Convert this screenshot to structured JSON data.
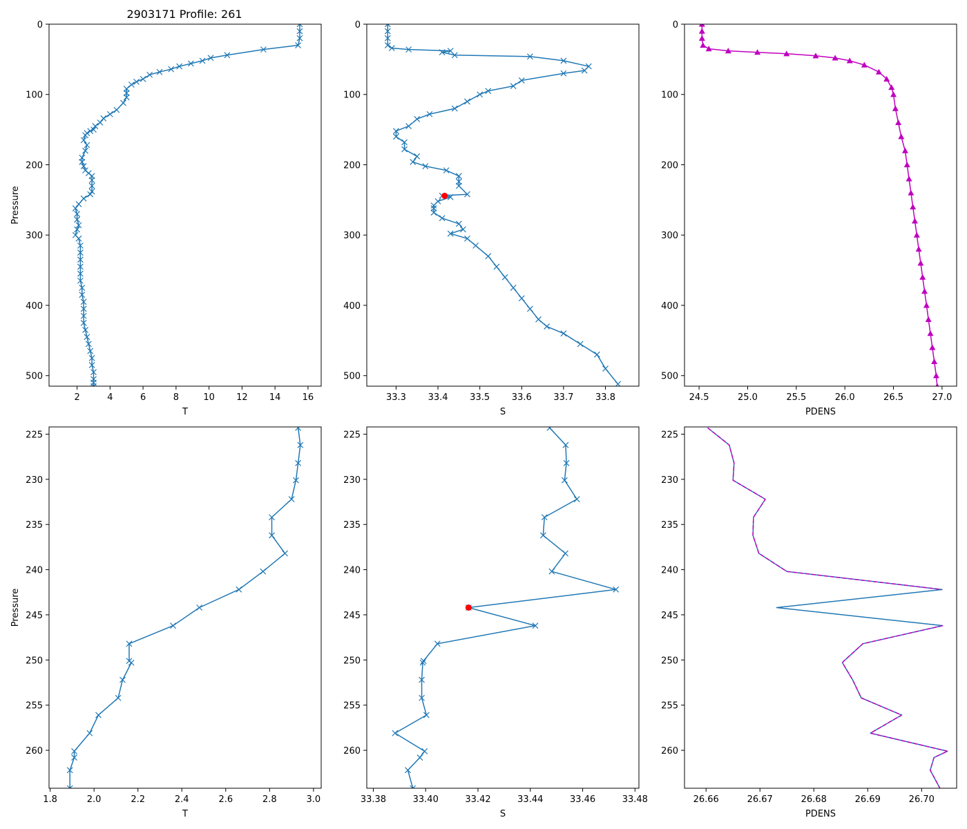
{
  "figure": {
    "title": "2903171 Profile: 261"
  },
  "colors": {
    "profile": "#1f77b4",
    "density": "#bf00bf",
    "highlight": "#ff0000"
  },
  "chart_data": [
    {
      "id": "top-temperature",
      "type": "line",
      "xlabel": "T",
      "ylabel": "Pressure",
      "xlim": [
        0.3,
        16.8
      ],
      "ylim": [
        515,
        0
      ],
      "invert_y": true,
      "xticks": [
        2,
        4,
        6,
        8,
        10,
        12,
        14,
        16
      ],
      "yticks": [
        0,
        100,
        200,
        300,
        400,
        500
      ],
      "marker": "x",
      "line_color": "#1f77b4",
      "series": [
        {
          "name": "T",
          "x": [
            15.5,
            15.5,
            15.5,
            15.4,
            13.3,
            11.1,
            10.1,
            9.6,
            8.9,
            8.2,
            7.7,
            7.0,
            6.4,
            6.0,
            5.6,
            5.3,
            5.0,
            5.0,
            5.0,
            4.8,
            4.4,
            4.0,
            3.6,
            3.4,
            3.1,
            3.0,
            2.8,
            2.6,
            2.5,
            2.4,
            2.6,
            2.5,
            2.3,
            2.3,
            2.4,
            2.5,
            2.7,
            2.9,
            2.9,
            2.9,
            2.9,
            2.8,
            2.4,
            2.1,
            1.9,
            2.0,
            2.0,
            2.1,
            2.0,
            1.9,
            2.1,
            2.2,
            2.2,
            2.2,
            2.2,
            2.2,
            2.2,
            2.3,
            2.3,
            2.4,
            2.4,
            2.4,
            2.4,
            2.5,
            2.6,
            2.7,
            2.8,
            2.9,
            2.9,
            3.0,
            3.0,
            3.0,
            3.0
          ],
          "y": [
            0,
            10,
            20,
            30,
            36,
            44,
            48,
            52,
            56,
            60,
            64,
            68,
            72,
            78,
            82,
            86,
            92,
            98,
            104,
            112,
            122,
            128,
            134,
            140,
            145,
            150,
            152,
            155,
            158,
            165,
            172,
            180,
            190,
            196,
            202,
            208,
            212,
            216,
            222,
            230,
            238,
            242,
            248,
            256,
            262,
            270,
            278,
            286,
            292,
            300,
            305,
            315,
            325,
            335,
            345,
            355,
            365,
            375,
            385,
            395,
            405,
            415,
            425,
            435,
            445,
            455,
            465,
            475,
            485,
            495,
            505,
            510,
            515
          ]
        }
      ],
      "highlight": null
    },
    {
      "id": "top-salinity",
      "type": "line",
      "xlabel": "S",
      "ylabel": "",
      "xlim": [
        33.23,
        33.88
      ],
      "ylim": [
        515,
        0
      ],
      "invert_y": true,
      "xticks": [
        33.3,
        33.4,
        33.5,
        33.6,
        33.7,
        33.8
      ],
      "yticks": [
        0,
        100,
        200,
        300,
        400,
        500
      ],
      "marker": "x",
      "line_color": "#1f77b4",
      "series": [
        {
          "name": "S",
          "x": [
            33.28,
            33.28,
            33.28,
            33.28,
            33.29,
            33.33,
            33.43,
            33.41,
            33.44,
            33.62,
            33.7,
            33.76,
            33.75,
            33.7,
            33.6,
            33.58,
            33.52,
            33.5,
            33.47,
            33.44,
            33.38,
            33.35,
            33.33,
            33.3,
            33.3,
            33.32,
            33.32,
            33.35,
            33.34,
            33.37,
            33.42,
            33.45,
            33.45,
            33.45,
            33.47,
            33.41,
            33.43,
            33.4,
            33.39,
            33.39,
            33.39,
            33.41,
            33.45,
            33.46,
            33.43,
            33.47,
            33.49,
            33.52,
            33.54,
            33.56,
            33.58,
            33.6,
            33.62,
            33.64,
            33.66,
            33.7,
            33.74,
            33.78,
            33.8,
            33.83
          ],
          "y": [
            0,
            10,
            20,
            30,
            34,
            36,
            38,
            40,
            44,
            46,
            52,
            60,
            66,
            70,
            80,
            88,
            95,
            100,
            110,
            120,
            128,
            135,
            145,
            152,
            160,
            168,
            178,
            188,
            196,
            202,
            208,
            216,
            224,
            230,
            242,
            244,
            246,
            252,
            258,
            262,
            268,
            276,
            284,
            292,
            298,
            305,
            315,
            330,
            345,
            360,
            375,
            390,
            405,
            420,
            430,
            440,
            455,
            470,
            490,
            512
          ]
        }
      ],
      "highlight": {
        "x": [
          33.416
        ],
        "y": [
          244.2
        ]
      }
    },
    {
      "id": "top-density",
      "type": "line",
      "xlabel": "PDENS",
      "ylabel": "",
      "xlim": [
        24.35,
        27.15
      ],
      "ylim": [
        515,
        0
      ],
      "invert_y": true,
      "xticks": [
        24.5,
        25.0,
        25.5,
        26.0,
        26.5,
        27.0
      ],
      "yticks": [
        0,
        100,
        200,
        300,
        400,
        500
      ],
      "marker": "^",
      "line_color": "#bf00bf",
      "series": [
        {
          "name": "PDENS",
          "x": [
            24.53,
            24.53,
            24.53,
            24.54,
            24.6,
            24.8,
            25.1,
            25.4,
            25.7,
            25.9,
            26.05,
            26.2,
            26.35,
            26.43,
            26.48,
            26.5,
            26.52,
            26.55,
            26.58,
            26.62,
            26.64,
            26.66,
            26.68,
            26.7,
            26.72,
            26.74,
            26.76,
            26.78,
            26.8,
            26.82,
            26.84,
            26.86,
            26.88,
            26.9,
            26.92,
            26.94,
            26.95
          ],
          "y": [
            0,
            10,
            20,
            30,
            35,
            38,
            40,
            42,
            45,
            48,
            52,
            58,
            68,
            78,
            90,
            100,
            120,
            140,
            160,
            180,
            200,
            220,
            240,
            260,
            280,
            300,
            320,
            340,
            360,
            380,
            400,
            420,
            440,
            460,
            480,
            500,
            515
          ]
        }
      ],
      "highlight": null
    },
    {
      "id": "bottom-temperature",
      "type": "line",
      "xlabel": "T",
      "ylabel": "Pressure",
      "xlim": [
        1.795,
        3.035
      ],
      "ylim": [
        264.2,
        224.2
      ],
      "invert_y": true,
      "xticks": [
        1.8,
        2.0,
        2.2,
        2.4,
        2.6,
        2.8,
        3.0
      ],
      "yticks": [
        225,
        230,
        235,
        240,
        245,
        250,
        255,
        260
      ],
      "marker": "x",
      "line_color": "#1f77b4",
      "series": [
        {
          "name": "T",
          "x": [
            2.93,
            2.94,
            2.93,
            2.92,
            2.9,
            2.81,
            2.81,
            2.87,
            2.77,
            2.66,
            2.48,
            2.36,
            2.16,
            2.16,
            2.17,
            2.13,
            2.11,
            2.02,
            1.98,
            1.91,
            1.91,
            1.89,
            1.89
          ],
          "y": [
            224.3,
            226.2,
            228.2,
            230.1,
            232.2,
            234.2,
            236.2,
            238.2,
            240.2,
            242.2,
            244.2,
            246.2,
            248.2,
            250.1,
            250.3,
            252.2,
            254.2,
            256.1,
            258.1,
            260.1,
            260.8,
            262.2,
            264.2
          ]
        }
      ],
      "highlight": null
    },
    {
      "id": "bottom-salinity",
      "type": "line",
      "xlabel": "S",
      "ylabel": "",
      "xlim": [
        33.3775,
        33.4815
      ],
      "ylim": [
        264.2,
        224.2
      ],
      "invert_y": true,
      "xticks": [
        33.38,
        33.4,
        33.42,
        33.44,
        33.46,
        33.48
      ],
      "yticks": [
        225,
        230,
        235,
        240,
        245,
        250,
        255,
        260
      ],
      "marker": "x",
      "line_color": "#1f77b4",
      "series": [
        {
          "name": "S",
          "x": [
            33.4474,
            33.4535,
            33.4538,
            33.4531,
            33.4578,
            33.4454,
            33.4449,
            33.4534,
            33.4482,
            33.4727,
            33.4164,
            33.4419,
            33.4045,
            33.3992,
            33.3989,
            33.3985,
            33.3985,
            33.4003,
            33.3883,
            33.3996,
            33.3978,
            33.3932,
            33.3951
          ],
          "y": [
            224.3,
            226.2,
            228.2,
            230.1,
            232.2,
            234.2,
            236.2,
            238.2,
            240.2,
            242.2,
            244.2,
            246.2,
            248.2,
            250.1,
            250.3,
            252.2,
            254.2,
            256.1,
            258.1,
            260.1,
            260.8,
            262.2,
            264.2
          ]
        }
      ],
      "highlight": {
        "x": [
          33.4164
        ],
        "y": [
          244.2
        ]
      }
    },
    {
      "id": "bottom-density",
      "type": "line",
      "xlabel": "PDENS",
      "ylabel": "",
      "xlim": [
        26.656,
        26.7065
      ],
      "ylim": [
        264.2,
        224.2
      ],
      "invert_y": true,
      "xticks": [
        26.66,
        26.67,
        26.68,
        26.69,
        26.7
      ],
      "yticks": [
        225,
        230,
        235,
        240,
        245,
        250,
        255,
        260
      ],
      "marker": "",
      "line_color": "#1f77b4",
      "series": [
        {
          "name": "PDENS",
          "x": [
            26.6603,
            26.6643,
            26.6652,
            26.665,
            26.671,
            26.6688,
            26.6687,
            26.6698,
            26.675,
            26.7038,
            26.6731,
            26.7039,
            26.6891,
            26.6856,
            26.6853,
            26.6872,
            26.6888,
            26.6963,
            26.6905,
            26.7048,
            26.7023,
            26.7016,
            26.7034
          ],
          "y": [
            224.3,
            226.2,
            228.2,
            230.1,
            232.2,
            234.2,
            236.2,
            238.2,
            240.2,
            242.2,
            244.2,
            246.2,
            248.2,
            250.1,
            250.3,
            252.2,
            254.2,
            256.1,
            258.1,
            260.1,
            260.8,
            262.2,
            264.2
          ]
        },
        {
          "name": "PDENS-dashed",
          "x": [
            26.6603,
            26.6643,
            26.6652,
            26.665,
            26.671,
            26.6688,
            26.6687,
            26.6698,
            26.675,
            26.7038
          ],
          "y": [
            224.3,
            226.2,
            228.2,
            230.1,
            232.2,
            234.2,
            236.2,
            238.2,
            240.2,
            242.2
          ]
        },
        {
          "name": "PDENS-dashed-2",
          "x": [
            26.7039,
            26.6891,
            26.6856,
            26.6853,
            26.6872,
            26.6888,
            26.6963,
            26.6905,
            26.7048,
            26.7023,
            26.7016,
            26.7034
          ],
          "y": [
            246.2,
            248.2,
            250.1,
            250.3,
            252.2,
            254.2,
            256.1,
            258.1,
            260.1,
            260.8,
            262.2,
            264.2
          ]
        }
      ],
      "highlight": null
    }
  ]
}
